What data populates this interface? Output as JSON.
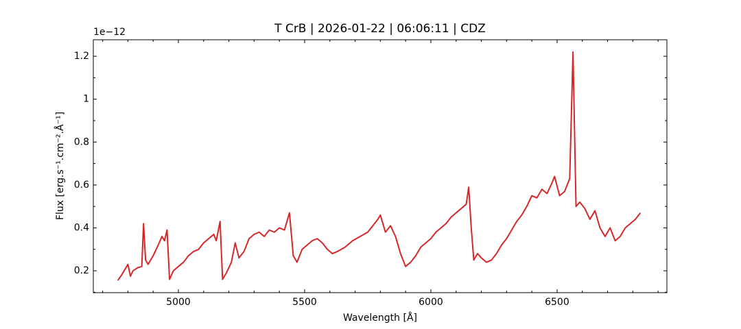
{
  "chart_data": {
    "type": "line",
    "title": "T CrB | 2026-01-22 | 06:06:11 | CDZ",
    "x_label": "Wavelength [Å]",
    "y_label": "Flux [erg.s⁻¹.cm⁻².Å⁻¹]",
    "y_offset_label": "1e−12",
    "xlim": [
      4663,
      6935
    ],
    "ylim": [
      0.098,
      1.277
    ],
    "xticks": [
      5000,
      5500,
      6000,
      6500
    ],
    "yticks": [
      0.2,
      0.4,
      0.6,
      0.8,
      1.0,
      1.2
    ],
    "x_minor_ticks": [
      4700,
      4800,
      4900,
      5100,
      5200,
      5300,
      5400,
      5600,
      5700,
      5800,
      5900,
      6100,
      6200,
      6300,
      6400,
      6600,
      6700,
      6800,
      6900
    ],
    "y_minor_ticks": [
      0.1,
      0.3,
      0.5,
      0.7,
      0.9,
      1.1
    ],
    "series": [
      {
        "color": "#d62728",
        "x": [
          4760,
          4775,
          4790,
          4800,
          4810,
          4820,
          4840,
          4855,
          4862,
          4870,
          4880,
          4900,
          4920,
          4935,
          4945,
          4955,
          4965,
          4980,
          5000,
          5020,
          5040,
          5060,
          5080,
          5100,
          5120,
          5140,
          5150,
          5165,
          5175,
          5190,
          5210,
          5225,
          5240,
          5260,
          5280,
          5300,
          5320,
          5340,
          5360,
          5380,
          5400,
          5420,
          5440,
          5455,
          5470,
          5490,
          5510,
          5530,
          5550,
          5570,
          5590,
          5610,
          5630,
          5660,
          5690,
          5720,
          5750,
          5770,
          5790,
          5800,
          5820,
          5840,
          5860,
          5880,
          5900,
          5920,
          5940,
          5960,
          5980,
          6000,
          6020,
          6040,
          6060,
          6080,
          6100,
          6120,
          6140,
          6150,
          6160,
          6170,
          6185,
          6200,
          6220,
          6240,
          6260,
          6280,
          6300,
          6320,
          6340,
          6360,
          6380,
          6400,
          6420,
          6440,
          6460,
          6480,
          6490,
          6510,
          6530,
          6550,
          6563,
          6575,
          6590,
          6610,
          6630,
          6650,
          6670,
          6690,
          6710,
          6730,
          6750,
          6770,
          6790,
          6810,
          6830
        ],
        "values": [
          0.155,
          0.18,
          0.21,
          0.23,
          0.175,
          0.2,
          0.215,
          0.22,
          0.42,
          0.25,
          0.23,
          0.27,
          0.32,
          0.36,
          0.34,
          0.39,
          0.16,
          0.2,
          0.22,
          0.24,
          0.27,
          0.29,
          0.3,
          0.33,
          0.35,
          0.37,
          0.34,
          0.43,
          0.16,
          0.19,
          0.24,
          0.33,
          0.26,
          0.29,
          0.35,
          0.37,
          0.38,
          0.36,
          0.39,
          0.38,
          0.4,
          0.39,
          0.47,
          0.27,
          0.24,
          0.3,
          0.32,
          0.34,
          0.35,
          0.33,
          0.3,
          0.28,
          0.29,
          0.31,
          0.34,
          0.36,
          0.38,
          0.41,
          0.44,
          0.46,
          0.38,
          0.41,
          0.36,
          0.28,
          0.22,
          0.24,
          0.27,
          0.31,
          0.33,
          0.35,
          0.38,
          0.4,
          0.42,
          0.45,
          0.47,
          0.49,
          0.51,
          0.59,
          0.4,
          0.25,
          0.28,
          0.26,
          0.24,
          0.25,
          0.28,
          0.32,
          0.35,
          0.39,
          0.43,
          0.46,
          0.5,
          0.55,
          0.54,
          0.58,
          0.56,
          0.61,
          0.64,
          0.55,
          0.57,
          0.63,
          1.22,
          0.5,
          0.52,
          0.49,
          0.44,
          0.48,
          0.4,
          0.36,
          0.4,
          0.34,
          0.36,
          0.4,
          0.42,
          0.44,
          0.47
        ]
      }
    ]
  }
}
